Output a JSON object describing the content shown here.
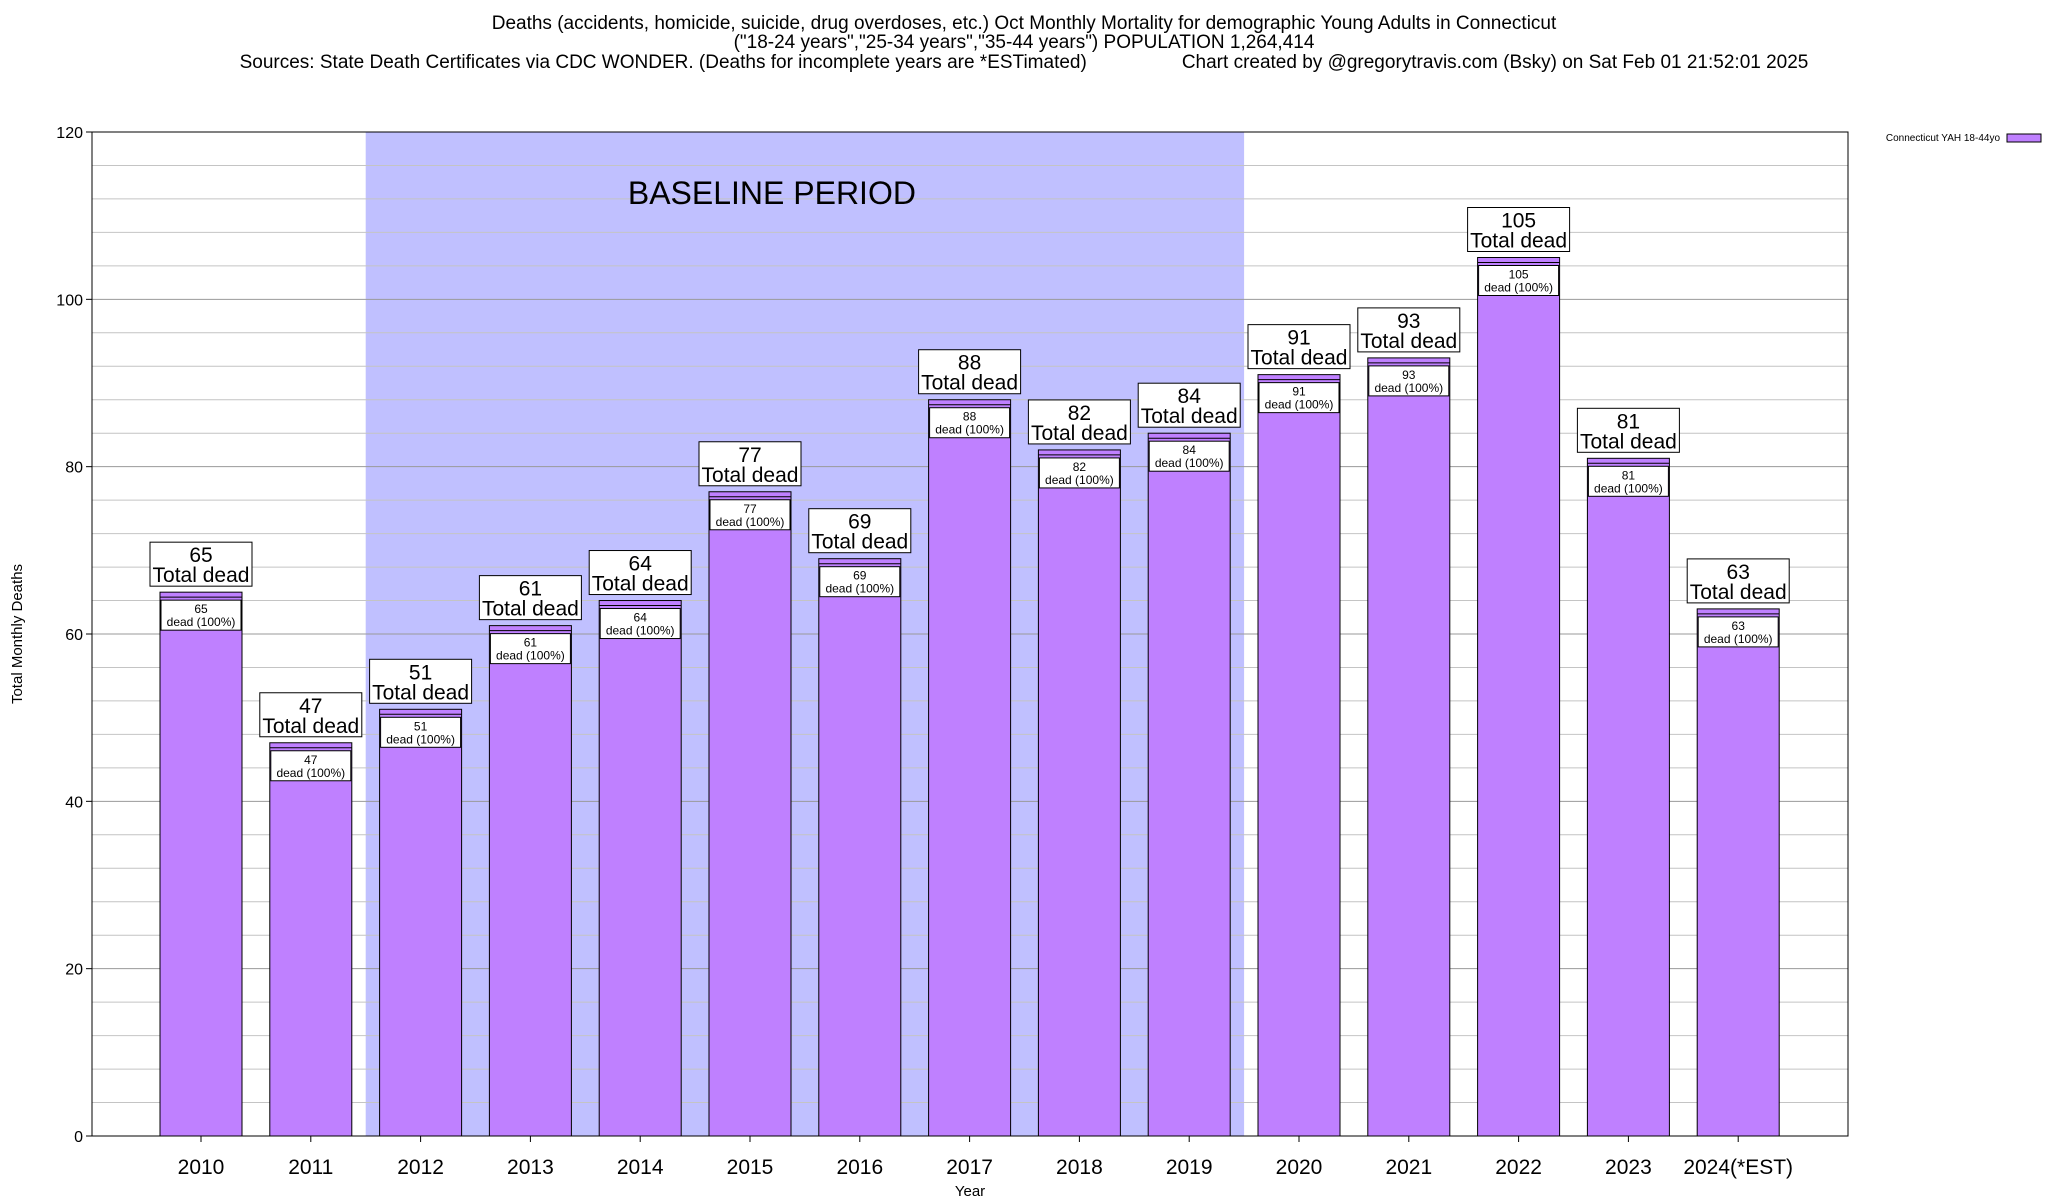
{
  "title_lines": [
    "Deaths (accidents, homicide, suicide, drug overdoses, etc.) Oct Monthly Mortality for demographic Young Adults in Connecticut",
    "(\"18-24 years\",\"25-34 years\",\"35-44 years\") POPULATION 1,264,414",
    "Sources: State Death Certificates via CDC WONDER. (Deaths for incomplete years are *ESTimated)                  Chart created by @gregorytravis.com (Bsky) on Sat Feb 01 21:52:01 2025"
  ],
  "chart_data": {
    "type": "bar",
    "categories": [
      "2010",
      "2011",
      "2012",
      "2013",
      "2014",
      "2015",
      "2016",
      "2017",
      "2018",
      "2019",
      "2020",
      "2021",
      "2022",
      "2023",
      "2024(*EST)"
    ],
    "series": [
      {
        "name": "Connecticut YAH 18-44yo",
        "values": [
          65,
          47,
          51,
          61,
          64,
          77,
          69,
          88,
          82,
          84,
          91,
          93,
          105,
          81,
          63
        ],
        "color": "#bf80ff"
      }
    ],
    "bar_top_labels": [
      "Total dead",
      "Total dead",
      "Total dead",
      "Total dead",
      "Total dead",
      "Total dead",
      "Total dead",
      "Total dead",
      "Total dead",
      "Total dead",
      "Total dead",
      "Total dead",
      "Total dead",
      "Total dead",
      "Total dead"
    ],
    "bar_inner_labels": [
      "dead (100%)",
      "dead (100%)",
      "dead (100%)",
      "dead (100%)",
      "dead (100%)",
      "dead (100%)",
      "dead (100%)",
      "dead (100%)",
      "dead (100%)",
      "dead (100%)",
      "dead (100%)",
      "dead (100%)",
      "dead (100%)",
      "dead (100%)",
      "dead (100%)"
    ],
    "baseline_period": {
      "label": "BASELINE PERIOD",
      "from": "2012",
      "to": "2019",
      "color": "#c0c0ff"
    },
    "xlabel": "Year",
    "ylabel": "Total Monthly Deaths",
    "ylim": [
      0,
      120
    ],
    "yticks": [
      0,
      20,
      40,
      60,
      80,
      100,
      120
    ],
    "y_minor_step": 4,
    "grid": true,
    "legend_position": "top-right"
  }
}
